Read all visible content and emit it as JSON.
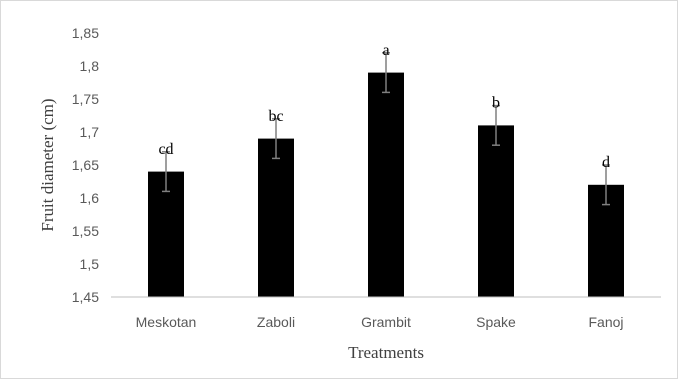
{
  "chart_data": {
    "type": "bar",
    "title": "",
    "xlabel": "Treatments",
    "ylabel": "Fruit diameter (cm)",
    "categories": [
      "Meskotan",
      "Zaboli",
      "Grambit",
      "Spake",
      "Fanoj"
    ],
    "values": [
      1.64,
      1.69,
      1.79,
      1.71,
      1.62
    ],
    "errors": [
      0.03,
      0.03,
      0.03,
      0.03,
      0.03
    ],
    "significance_letters": [
      "cd",
      "bc",
      "a",
      "b",
      "d"
    ],
    "ylim": [
      1.45,
      1.85
    ],
    "yticks": [
      1.45,
      1.5,
      1.55,
      1.6,
      1.65,
      1.7,
      1.75,
      1.8,
      1.85
    ],
    "ytick_labels": [
      "1,45",
      "1,5",
      "1,55",
      "1,6",
      "1,65",
      "1,7",
      "1,75",
      "1,8",
      "1,85"
    ],
    "grid": false,
    "legend": "none",
    "bar_color": "#000000",
    "error_bar_color": "#7f7f7f",
    "axis_color": "#bfbfbf"
  }
}
